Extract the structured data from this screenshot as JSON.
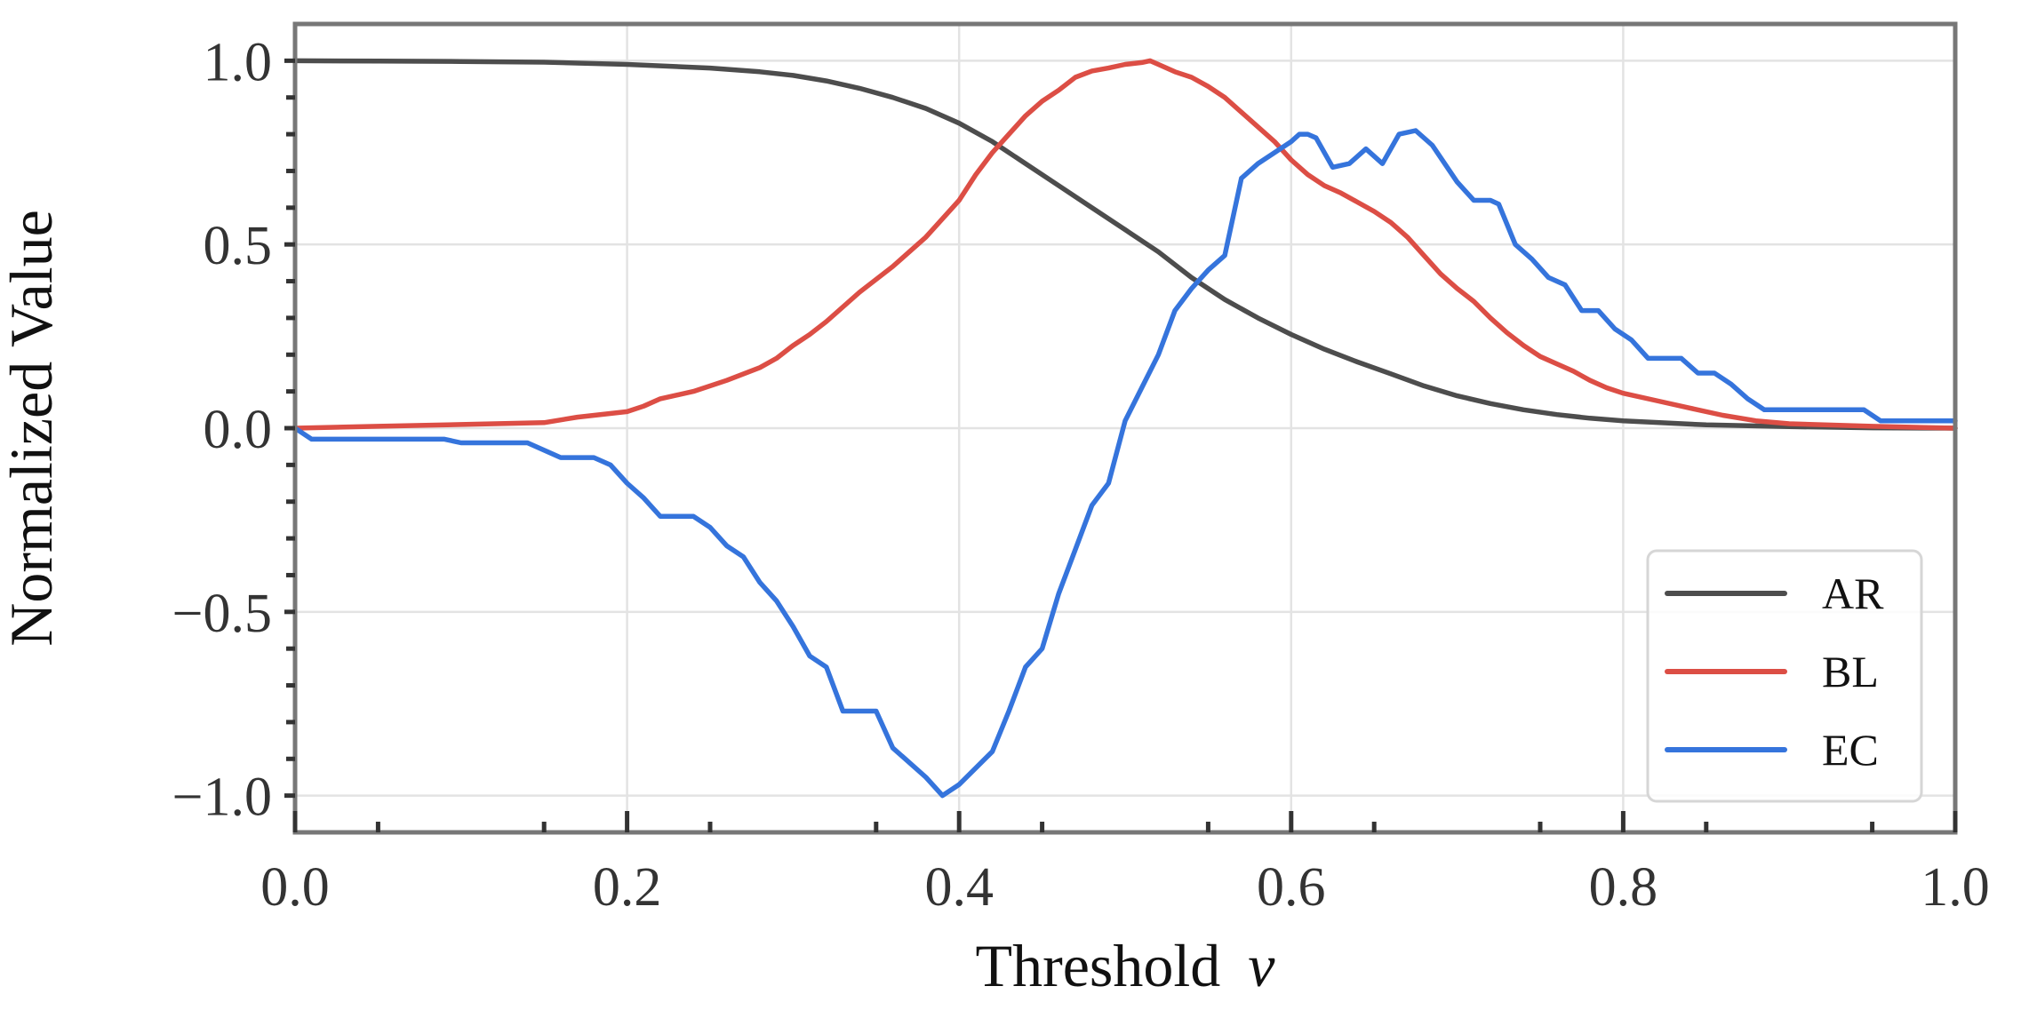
{
  "chart_data": {
    "type": "line",
    "title": "",
    "xlabel": "Threshold",
    "xlabel_var": "v",
    "ylabel": "Normalized Value",
    "xlim": [
      0.0,
      1.0
    ],
    "ylim": [
      -1.1,
      1.1
    ],
    "x_ticks": [
      0.0,
      0.2,
      0.4,
      0.6,
      0.8,
      1.0
    ],
    "x_tick_labels": [
      "0.0",
      "0.2",
      "0.4",
      "0.6",
      "0.8",
      "1.0"
    ],
    "y_ticks": [
      1.0,
      0.5,
      0.0,
      -0.5,
      -1.0
    ],
    "y_tick_labels": [
      "1.0",
      "0.5",
      "0.0",
      "−0.5",
      "−1.0"
    ],
    "grid": true,
    "legend_position": "bottom-right",
    "series": [
      {
        "name": "AR",
        "color": "#4d4d4d",
        "x": [
          0.0,
          0.05,
          0.1,
          0.15,
          0.2,
          0.25,
          0.28,
          0.3,
          0.32,
          0.34,
          0.36,
          0.38,
          0.4,
          0.42,
          0.44,
          0.46,
          0.48,
          0.5,
          0.52,
          0.54,
          0.56,
          0.58,
          0.6,
          0.62,
          0.64,
          0.66,
          0.68,
          0.7,
          0.72,
          0.74,
          0.76,
          0.78,
          0.8,
          0.85,
          0.9,
          0.95,
          1.0
        ],
        "values": [
          1.0,
          0.999,
          0.998,
          0.996,
          0.99,
          0.98,
          0.97,
          0.96,
          0.945,
          0.925,
          0.9,
          0.87,
          0.83,
          0.78,
          0.72,
          0.66,
          0.6,
          0.54,
          0.48,
          0.41,
          0.35,
          0.3,
          0.255,
          0.215,
          0.18,
          0.148,
          0.115,
          0.088,
          0.067,
          0.05,
          0.037,
          0.027,
          0.02,
          0.009,
          0.004,
          0.001,
          0.0
        ]
      },
      {
        "name": "BL",
        "color": "#dc4e45",
        "x": [
          0.0,
          0.05,
          0.1,
          0.15,
          0.17,
          0.2,
          0.21,
          0.22,
          0.24,
          0.26,
          0.28,
          0.29,
          0.3,
          0.31,
          0.32,
          0.34,
          0.36,
          0.38,
          0.4,
          0.41,
          0.42,
          0.43,
          0.44,
          0.45,
          0.46,
          0.47,
          0.48,
          0.49,
          0.5,
          0.51,
          0.515,
          0.52,
          0.53,
          0.54,
          0.55,
          0.56,
          0.57,
          0.58,
          0.59,
          0.6,
          0.61,
          0.62,
          0.63,
          0.64,
          0.65,
          0.66,
          0.67,
          0.68,
          0.69,
          0.7,
          0.71,
          0.72,
          0.73,
          0.74,
          0.75,
          0.76,
          0.77,
          0.78,
          0.79,
          0.8,
          0.82,
          0.84,
          0.86,
          0.88,
          0.9,
          0.95,
          1.0
        ],
        "values": [
          0.0,
          0.005,
          0.01,
          0.015,
          0.03,
          0.045,
          0.06,
          0.08,
          0.1,
          0.13,
          0.165,
          0.19,
          0.225,
          0.255,
          0.29,
          0.37,
          0.44,
          0.52,
          0.62,
          0.69,
          0.75,
          0.8,
          0.85,
          0.89,
          0.92,
          0.955,
          0.972,
          0.98,
          0.99,
          0.995,
          1.0,
          0.99,
          0.97,
          0.955,
          0.93,
          0.9,
          0.86,
          0.82,
          0.78,
          0.73,
          0.69,
          0.66,
          0.64,
          0.615,
          0.59,
          0.56,
          0.52,
          0.47,
          0.42,
          0.38,
          0.345,
          0.3,
          0.26,
          0.225,
          0.195,
          0.175,
          0.155,
          0.13,
          0.11,
          0.095,
          0.075,
          0.055,
          0.035,
          0.02,
          0.012,
          0.005,
          0.0
        ]
      },
      {
        "name": "EC",
        "color": "#3574dc",
        "x": [
          0.0,
          0.01,
          0.09,
          0.1,
          0.14,
          0.16,
          0.18,
          0.19,
          0.2,
          0.21,
          0.22,
          0.24,
          0.25,
          0.26,
          0.27,
          0.28,
          0.29,
          0.3,
          0.31,
          0.32,
          0.33,
          0.34,
          0.35,
          0.36,
          0.38,
          0.39,
          0.4,
          0.42,
          0.43,
          0.44,
          0.45,
          0.46,
          0.47,
          0.48,
          0.49,
          0.5,
          0.51,
          0.52,
          0.53,
          0.54,
          0.55,
          0.56,
          0.57,
          0.58,
          0.59,
          0.6,
          0.605,
          0.61,
          0.615,
          0.625,
          0.635,
          0.645,
          0.655,
          0.665,
          0.675,
          0.685,
          0.7,
          0.71,
          0.72,
          0.725,
          0.735,
          0.745,
          0.755,
          0.765,
          0.775,
          0.785,
          0.795,
          0.805,
          0.815,
          0.825,
          0.835,
          0.845,
          0.855,
          0.865,
          0.875,
          0.885,
          0.895,
          0.905,
          0.935,
          0.945,
          0.955,
          1.0
        ],
        "values": [
          0.0,
          -0.03,
          -0.03,
          -0.04,
          -0.04,
          -0.08,
          -0.08,
          -0.1,
          -0.15,
          -0.19,
          -0.24,
          -0.24,
          -0.27,
          -0.32,
          -0.35,
          -0.42,
          -0.47,
          -0.54,
          -0.62,
          -0.65,
          -0.77,
          -0.77,
          -0.77,
          -0.87,
          -0.95,
          -1.0,
          -0.97,
          -0.88,
          -0.77,
          -0.65,
          -0.6,
          -0.45,
          -0.33,
          -0.21,
          -0.15,
          0.02,
          0.11,
          0.2,
          0.32,
          0.38,
          0.43,
          0.47,
          0.68,
          0.72,
          0.75,
          0.78,
          0.8,
          0.8,
          0.79,
          0.71,
          0.72,
          0.76,
          0.72,
          0.8,
          0.81,
          0.77,
          0.67,
          0.62,
          0.62,
          0.61,
          0.5,
          0.46,
          0.41,
          0.39,
          0.32,
          0.32,
          0.27,
          0.24,
          0.19,
          0.19,
          0.19,
          0.15,
          0.15,
          0.12,
          0.08,
          0.05,
          0.05,
          0.05,
          0.05,
          0.05,
          0.02,
          0.02
        ]
      }
    ]
  }
}
